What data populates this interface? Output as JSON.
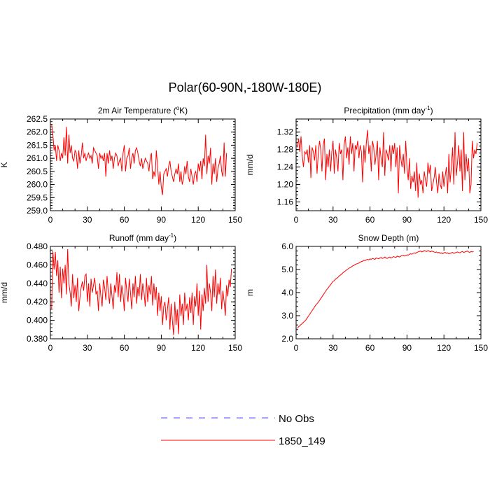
{
  "figure_title": "Polar(60-90N,-180W-180E)",
  "legend": [
    {
      "label": "No Obs",
      "color": "#4b4bff",
      "dashed": true
    },
    {
      "label": "1850_149",
      "color": "#ff0000",
      "dashed": false
    }
  ],
  "chart_data": [
    {
      "type": "line",
      "title": "2m Air Temperature (°K)",
      "title_main": "2m Air Temperature (",
      "title_sup": "o",
      "title_tail": "K)",
      "ylabel": "K",
      "xlim": [
        0,
        150
      ],
      "ylim": [
        259.0,
        262.5
      ],
      "xticks": [
        0,
        30,
        60,
        90,
        120,
        150
      ],
      "xtick_labels": [
        "0",
        "30",
        "60",
        "90",
        "120",
        "150"
      ],
      "yticks": [
        259.0,
        259.5,
        260.0,
        260.5,
        261.0,
        261.5,
        262.0,
        262.5
      ],
      "ytick_labels": [
        "259.0",
        "259.5",
        "260.0",
        "260.5",
        "261.0",
        "261.5",
        "262.0",
        "262.5"
      ],
      "series": [
        {
          "name": "1850_149",
          "color": "#ff0000",
          "x_start": 1,
          "values": [
            262.3,
            261.9,
            261.3,
            261.5,
            260.9,
            261.5,
            261.3,
            260.9,
            261.2,
            261.0,
            261.8,
            261.1,
            262.2,
            260.8,
            261.9,
            261.2,
            261.5,
            261.0,
            260.9,
            261.3,
            261.2,
            260.6,
            261.3,
            260.8,
            261.1,
            261.6,
            261.0,
            261.2,
            260.9,
            261.1,
            261.2,
            261.0,
            261.1,
            260.8,
            261.4,
            261.3,
            261.2,
            261.1,
            260.6,
            261.2,
            261.0,
            261.1,
            260.9,
            261.2,
            260.3,
            261.2,
            260.8,
            261.3,
            260.9,
            261.1,
            260.6,
            261.0,
            261.2,
            261.1,
            260.7,
            260.9,
            261.0,
            260.5,
            261.2,
            261.5,
            260.5,
            261.0,
            261.1,
            261.4,
            260.6,
            261.0,
            261.2,
            260.8,
            261.3,
            261.4,
            261.2,
            260.9,
            260.7,
            261.0,
            260.6,
            260.8,
            261.0,
            260.9,
            260.8,
            260.5,
            261.0,
            261.2,
            260.2,
            260.5,
            260.3,
            261.3,
            260.7,
            260.0,
            260.5,
            259.9,
            259.6,
            260.4,
            260.5,
            260.6,
            260.3,
            260.7,
            260.9,
            260.5,
            260.3,
            260.1,
            260.4,
            260.6,
            260.4,
            260.8,
            260.1,
            260.5,
            260.0,
            260.2,
            260.7,
            260.4,
            260.9,
            260.3,
            260.1,
            260.6,
            260.3,
            260.0,
            260.4,
            260.5,
            260.1,
            260.8,
            260.5,
            260.9,
            260.2,
            261.0,
            260.7,
            261.9,
            260.4,
            261.1,
            260.8,
            261.4,
            260.0,
            260.8,
            260.4,
            261.0,
            260.1,
            260.6,
            260.8,
            261.1,
            260.5,
            260.3,
            261.6,
            260.3,
            261.2
          ]
        }
      ]
    },
    {
      "type": "line",
      "title": "Precipitation (mm day-1)",
      "title_main": "Precipitation (mm day",
      "title_sup": "-1",
      "title_tail": ")",
      "ylabel": "mm/d",
      "xlim": [
        0,
        150
      ],
      "ylim": [
        1.14,
        1.35
      ],
      "xticks": [
        0,
        30,
        60,
        90,
        120,
        150
      ],
      "xtick_labels": [
        "0",
        "30",
        "60",
        "90",
        "120",
        "150"
      ],
      "yticks": [
        1.16,
        1.2,
        1.24,
        1.28,
        1.32
      ],
      "ytick_labels": [
        "1.16",
        "1.20",
        "1.24",
        "1.28",
        "1.32"
      ],
      "series": [
        {
          "name": "1850_149",
          "color": "#ff0000",
          "x_start": 1,
          "values": [
            1.285,
            1.305,
            1.275,
            1.31,
            1.265,
            1.24,
            1.275,
            1.27,
            1.28,
            1.25,
            1.29,
            1.215,
            1.285,
            1.275,
            1.255,
            1.29,
            1.225,
            1.27,
            1.3,
            1.28,
            1.23,
            1.29,
            1.305,
            1.21,
            1.27,
            1.24,
            1.28,
            1.23,
            1.275,
            1.3,
            1.225,
            1.28,
            1.26,
            1.23,
            1.295,
            1.27,
            1.28,
            1.21,
            1.29,
            1.31,
            1.26,
            1.285,
            1.245,
            1.31,
            1.27,
            1.295,
            1.23,
            1.29,
            1.28,
            1.3,
            1.26,
            1.29,
            1.275,
            1.205,
            1.29,
            1.25,
            1.295,
            1.325,
            1.27,
            1.29,
            1.23,
            1.3,
            1.285,
            1.245,
            1.27,
            1.3,
            1.21,
            1.285,
            1.26,
            1.24,
            1.32,
            1.22,
            1.28,
            1.27,
            1.255,
            1.29,
            1.23,
            1.29,
            1.27,
            1.295,
            1.24,
            1.285,
            1.18,
            1.29,
            1.26,
            1.24,
            1.27,
            1.225,
            1.3,
            1.24,
            1.21,
            1.26,
            1.19,
            1.22,
            1.205,
            1.23,
            1.185,
            1.25,
            1.17,
            1.225,
            1.2,
            1.21,
            1.18,
            1.23,
            1.21,
            1.195,
            1.25,
            1.225,
            1.245,
            1.185,
            1.2,
            1.215,
            1.24,
            1.205,
            1.18,
            1.225,
            1.2,
            1.19,
            1.23,
            1.195,
            1.22,
            1.24,
            1.18,
            1.27,
            1.205,
            1.24,
            1.285,
            1.2,
            1.32,
            1.22,
            1.25,
            1.29,
            1.23,
            1.28,
            1.185,
            1.32,
            1.21,
            1.27,
            1.23,
            1.26,
            1.18,
            1.2,
            1.3,
            1.26,
            1.28,
            1.27,
            1.295
          ]
        }
      ]
    },
    {
      "type": "line",
      "title": "Runoff (mm day-1)",
      "title_main": "Runoff (mm day",
      "title_sup": "-1",
      "title_tail": ")",
      "ylabel": "mm/d",
      "xlim": [
        0,
        150
      ],
      "ylim": [
        0.38,
        0.48
      ],
      "xticks": [
        0,
        30,
        60,
        90,
        120,
        150
      ],
      "xtick_labels": [
        "0",
        "30",
        "60",
        "90",
        "120",
        "150"
      ],
      "yticks": [
        0.38,
        0.4,
        0.42,
        0.44,
        0.46,
        0.48
      ],
      "ytick_labels": [
        "0.380",
        "0.400",
        "0.420",
        "0.440",
        "0.460",
        "0.480"
      ],
      "series": [
        {
          "name": "1850_149",
          "color": "#ff0000",
          "x_start": 1,
          "values": [
            0.412,
            0.475,
            0.455,
            0.474,
            0.448,
            0.465,
            0.43,
            0.458,
            0.424,
            0.456,
            0.44,
            0.46,
            0.428,
            0.477,
            0.44,
            0.43,
            0.415,
            0.45,
            0.424,
            0.438,
            0.42,
            0.446,
            0.41,
            0.425,
            0.436,
            0.442,
            0.432,
            0.448,
            0.45,
            0.42,
            0.44,
            0.415,
            0.445,
            0.43,
            0.438,
            0.446,
            0.428,
            0.432,
            0.41,
            0.44,
            0.426,
            0.415,
            0.444,
            0.436,
            0.422,
            0.448,
            0.43,
            0.418,
            0.44,
            0.426,
            0.412,
            0.438,
            0.43,
            0.452,
            0.425,
            0.45,
            0.42,
            0.438,
            0.428,
            0.41,
            0.446,
            0.432,
            0.42,
            0.445,
            0.43,
            0.412,
            0.44,
            0.425,
            0.448,
            0.418,
            0.436,
            0.426,
            0.45,
            0.422,
            0.44,
            0.43,
            0.415,
            0.446,
            0.42,
            0.438,
            0.428,
            0.448,
            0.416,
            0.44,
            0.422,
            0.436,
            0.405,
            0.43,
            0.41,
            0.426,
            0.395,
            0.415,
            0.42,
            0.4,
            0.412,
            0.425,
            0.39,
            0.418,
            0.4,
            0.384,
            0.42,
            0.395,
            0.412,
            0.385,
            0.428,
            0.405,
            0.418,
            0.395,
            0.43,
            0.41,
            0.418,
            0.4,
            0.425,
            0.408,
            0.43,
            0.395,
            0.426,
            0.415,
            0.44,
            0.405,
            0.432,
            0.39,
            0.428,
            0.41,
            0.435,
            0.418,
            0.46,
            0.42,
            0.44,
            0.43,
            0.41,
            0.448,
            0.425,
            0.455,
            0.418,
            0.44,
            0.428,
            0.446,
            0.412,
            0.432,
            0.42,
            0.405,
            0.438,
            0.426,
            0.444,
            0.436,
            0.456
          ]
        }
      ]
    },
    {
      "type": "line",
      "title": "Snow Depth (m)",
      "title_main": "Snow Depth (m)",
      "title_sup": "",
      "title_tail": "",
      "ylabel": "m",
      "xlim": [
        0,
        150
      ],
      "ylim": [
        2.0,
        6.0
      ],
      "xticks": [
        0,
        30,
        60,
        90,
        120,
        150
      ],
      "xtick_labels": [
        "0",
        "30",
        "60",
        "90",
        "120",
        "150"
      ],
      "yticks": [
        2.0,
        3.0,
        4.0,
        5.0,
        6.0
      ],
      "ytick_labels": [
        "2.0",
        "3.0",
        "4.0",
        "5.0",
        "6.0"
      ],
      "series": [
        {
          "name": "1850_149",
          "color": "#ff0000",
          "x_start": 1,
          "values": [
            2.45,
            2.52,
            2.56,
            2.62,
            2.66,
            2.72,
            2.76,
            2.82,
            2.9,
            2.98,
            3.06,
            3.14,
            3.22,
            3.3,
            3.38,
            3.46,
            3.52,
            3.58,
            3.66,
            3.74,
            3.82,
            3.9,
            3.98,
            4.06,
            4.14,
            4.2,
            4.28,
            4.34,
            4.42,
            4.48,
            4.52,
            4.58,
            4.62,
            4.66,
            4.72,
            4.76,
            4.8,
            4.86,
            4.9,
            4.94,
            4.98,
            5.02,
            5.06,
            5.08,
            5.12,
            5.16,
            5.18,
            5.22,
            5.24,
            5.26,
            5.28,
            5.32,
            5.34,
            5.36,
            5.4,
            5.38,
            5.42,
            5.44,
            5.42,
            5.46,
            5.44,
            5.48,
            5.46,
            5.44,
            5.5,
            5.48,
            5.46,
            5.5,
            5.52,
            5.48,
            5.5,
            5.54,
            5.5,
            5.48,
            5.52,
            5.54,
            5.5,
            5.52,
            5.56,
            5.54,
            5.52,
            5.58,
            5.56,
            5.54,
            5.58,
            5.6,
            5.62,
            5.58,
            5.6,
            5.64,
            5.62,
            5.66,
            5.68,
            5.66,
            5.7,
            5.72,
            5.7,
            5.74,
            5.76,
            5.78,
            5.8,
            5.76,
            5.78,
            5.82,
            5.8,
            5.78,
            5.82,
            5.8,
            5.76,
            5.8,
            5.78,
            5.76,
            5.74,
            5.76,
            5.72,
            5.74,
            5.7,
            5.72,
            5.68,
            5.72,
            5.74,
            5.7,
            5.72,
            5.68,
            5.7,
            5.72,
            5.74,
            5.7,
            5.72,
            5.74,
            5.76,
            5.74,
            5.72,
            5.76,
            5.78,
            5.74,
            5.76,
            5.78,
            5.8,
            5.76,
            5.74,
            5.78,
            5.76,
            5.78
          ]
        }
      ]
    }
  ]
}
